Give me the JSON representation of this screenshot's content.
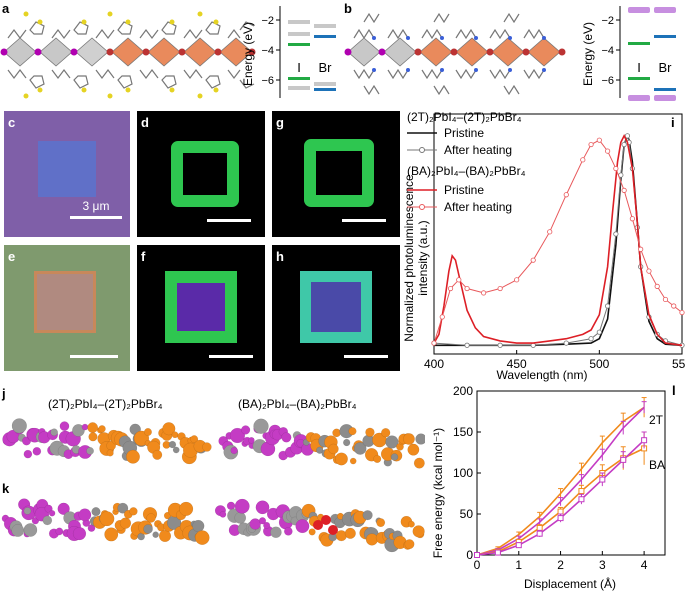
{
  "panels": {
    "a": "a",
    "b": "b",
    "c": "c",
    "d": "d",
    "e": "e",
    "f": "f",
    "g": "g",
    "h": "h",
    "i": "i",
    "j": "j",
    "k": "k",
    "l": "l"
  },
  "energy_a": {
    "ylabel": "Energy (eV)",
    "ticks": [
      "−2",
      "−4",
      "−6"
    ],
    "cols": [
      "I",
      "Br"
    ]
  },
  "energy_b": {
    "ylabel": "Energy (eV)",
    "ticks": [
      "−2",
      "−4",
      "−6"
    ],
    "cols": [
      "I",
      "Br"
    ]
  },
  "scalebar": "3 μm",
  "captions": {
    "j_left": "(2T)₂PbI₄–(2T)₂PbBr₄",
    "j_right": "(BA)₂PbI₄–(BA)₂PbBr₄"
  },
  "colors": {
    "green": "#22aa44",
    "blue": "#1d72b8",
    "grey": "#c8c8c8",
    "lilac": "#c78fe0",
    "black": "#111111",
    "red": "#dd1f26",
    "orange": "#f08a1c",
    "magenta": "#c43cc4",
    "purple_bg": "#7f5fa8",
    "olive_bg": "#7f9a6e"
  },
  "chart_data": [
    {
      "type": "line",
      "panel": "i",
      "xlabel": "Wavelength (nm)",
      "ylabel": "Normalized photoluminescence intensity (a.u.)",
      "ylabel_lines": [
        "Normalized photoluminescence",
        "intensity (a.u.)"
      ],
      "xlim": [
        400,
        550
      ],
      "ylim": [
        0,
        1.1
      ],
      "xticks": [
        400,
        450,
        500,
        550
      ],
      "legend_placement": "top-left",
      "legend": {
        "group1": "(2T)₂PbI₄–(2T)₂PbBr₄",
        "group2": "(BA)₂PbI₄–(BA)₂PbBr₄",
        "pristine": "Pristine",
        "heated": "After heating"
      },
      "series": [
        {
          "group": "group1",
          "state": "pristine",
          "color": "#111111",
          "marker": "none",
          "x": [
            400,
            420,
            440,
            460,
            480,
            495,
            500,
            505,
            510,
            513,
            515,
            517,
            518,
            520,
            523,
            525,
            530,
            535,
            540,
            550
          ],
          "y": [
            0.04,
            0.04,
            0.04,
            0.04,
            0.045,
            0.05,
            0.07,
            0.16,
            0.5,
            0.8,
            0.96,
            1.0,
            0.98,
            0.88,
            0.6,
            0.4,
            0.15,
            0.07,
            0.045,
            0.04
          ]
        },
        {
          "group": "group1",
          "state": "heated",
          "color": "#777777",
          "marker": "circle",
          "x": [
            400,
            420,
            440,
            460,
            480,
            495,
            500,
            505,
            510,
            513,
            515,
            517,
            518,
            520,
            523,
            525,
            530,
            535,
            540,
            550
          ],
          "y": [
            0.05,
            0.04,
            0.04,
            0.04,
            0.05,
            0.07,
            0.1,
            0.22,
            0.55,
            0.82,
            0.96,
            1.0,
            0.97,
            0.85,
            0.58,
            0.4,
            0.17,
            0.09,
            0.06,
            0.04
          ]
        },
        {
          "group": "group2",
          "state": "pristine",
          "color": "#dd1f26",
          "marker": "none",
          "x": [
            400,
            403,
            406,
            409,
            411,
            413,
            416,
            420,
            425,
            430,
            440,
            450,
            460,
            470,
            480,
            490,
            495,
            500,
            505,
            508,
            511,
            513,
            515,
            517,
            520,
            523,
            525,
            530,
            535,
            540,
            550
          ],
          "y": [
            0.05,
            0.09,
            0.22,
            0.38,
            0.45,
            0.43,
            0.33,
            0.2,
            0.12,
            0.08,
            0.06,
            0.05,
            0.05,
            0.06,
            0.07,
            0.09,
            0.11,
            0.18,
            0.4,
            0.65,
            0.88,
            0.97,
            1.0,
            0.97,
            0.85,
            0.6,
            0.4,
            0.18,
            0.09,
            0.05,
            0.04
          ]
        },
        {
          "group": "group2",
          "state": "heated",
          "color": "#e8585b",
          "marker": "circle",
          "x": [
            400,
            405,
            410,
            415,
            420,
            430,
            440,
            450,
            460,
            470,
            480,
            490,
            495,
            500,
            505,
            510,
            515,
            520,
            525,
            530,
            535,
            540,
            545,
            550
          ],
          "y": [
            0.05,
            0.17,
            0.3,
            0.34,
            0.3,
            0.28,
            0.3,
            0.34,
            0.43,
            0.56,
            0.73,
            0.89,
            0.96,
            0.98,
            0.93,
            0.85,
            0.75,
            0.62,
            0.48,
            0.38,
            0.31,
            0.25,
            0.22,
            0.19
          ]
        }
      ]
    },
    {
      "type": "line",
      "panel": "l",
      "xlabel": "Displacement (Å)",
      "ylabel": "Free energy (kcal mol⁻¹)",
      "xlim": [
        0,
        4.5
      ],
      "ylim": [
        0,
        200
      ],
      "xticks": [
        0,
        1,
        2,
        3,
        4
      ],
      "yticks": [
        0,
        50,
        100,
        150,
        200
      ],
      "series": [
        {
          "name": "2T",
          "color": "#f08a1c",
          "marker": "none",
          "x": [
            0,
            0.5,
            1,
            1.5,
            2,
            2.5,
            3,
            3.5,
            4
          ],
          "y": [
            0,
            8,
            25,
            47,
            75,
            105,
            137,
            163,
            180
          ],
          "err": [
            0,
            2,
            3,
            5,
            6,
            7,
            8,
            10,
            12
          ]
        },
        {
          "name": "",
          "color": "#c43cc4",
          "marker": "none",
          "x": [
            0,
            0.5,
            1,
            1.5,
            2,
            2.5,
            3,
            3.5,
            4
          ],
          "y": [
            0,
            6,
            20,
            40,
            65,
            92,
            122,
            155,
            180
          ],
          "err": [
            0,
            2,
            3,
            4,
            5,
            6,
            7,
            8,
            7
          ]
        },
        {
          "name": "BA",
          "color": "#f08a1c",
          "marker": "square",
          "x": [
            0,
            0.5,
            1,
            1.5,
            2,
            2.5,
            3,
            3.5,
            4
          ],
          "y": [
            0,
            4,
            16,
            33,
            53,
            78,
            100,
            118,
            130
          ],
          "err": [
            0,
            2,
            3,
            4,
            5,
            7,
            10,
            14,
            20
          ]
        },
        {
          "name": "",
          "color": "#c43cc4",
          "marker": "square",
          "x": [
            0,
            0.5,
            1,
            1.5,
            2,
            2.5,
            3,
            3.5,
            4
          ],
          "y": [
            0,
            3,
            12,
            26,
            45,
            68,
            92,
            116,
            140
          ],
          "err": [
            0,
            2,
            3,
            4,
            5,
            6,
            8,
            10,
            10
          ]
        }
      ]
    }
  ]
}
